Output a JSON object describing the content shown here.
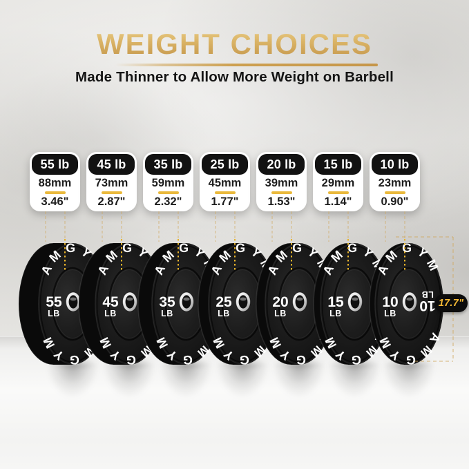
{
  "header": {
    "title": "WEIGHT CHOICES",
    "subtitle": "Made Thinner to Allow More Weight on Barbell"
  },
  "brand_text": "AMGYM",
  "dimension": {
    "label": "17.7\""
  },
  "colors": {
    "title_gold": "#d4aa56",
    "divider_gold": "#eab93c",
    "guide_dash_gold": "#d0a85c",
    "dotted_bright_yellow": "#e8b42a",
    "pill_bg": "#0c0c0c",
    "pill_text_gold": "#f3b834",
    "card_header_bg": "#121212",
    "plate_black": "#151515"
  },
  "plates": [
    {
      "label": "55 lb",
      "thickness_mm": "88mm",
      "thickness_in": "3.46\"",
      "weight": "55",
      "unit": "LB"
    },
    {
      "label": "45 lb",
      "thickness_mm": "73mm",
      "thickness_in": "2.87\"",
      "weight": "45",
      "unit": "LB"
    },
    {
      "label": "35 lb",
      "thickness_mm": "59mm",
      "thickness_in": "2.32\"",
      "weight": "35",
      "unit": "LB"
    },
    {
      "label": "25 lb",
      "thickness_mm": "45mm",
      "thickness_in": "1.77\"",
      "weight": "25",
      "unit": "LB"
    },
    {
      "label": "20 lb",
      "thickness_mm": "39mm",
      "thickness_in": "1.53\"",
      "weight": "20",
      "unit": "LB"
    },
    {
      "label": "15 lb",
      "thickness_mm": "29mm",
      "thickness_in": "1.14\"",
      "weight": "15",
      "unit": "LB"
    },
    {
      "label": "10 lb",
      "thickness_mm": "23mm",
      "thickness_in": "0.90\"",
      "weight": "10",
      "unit": "LB"
    }
  ]
}
